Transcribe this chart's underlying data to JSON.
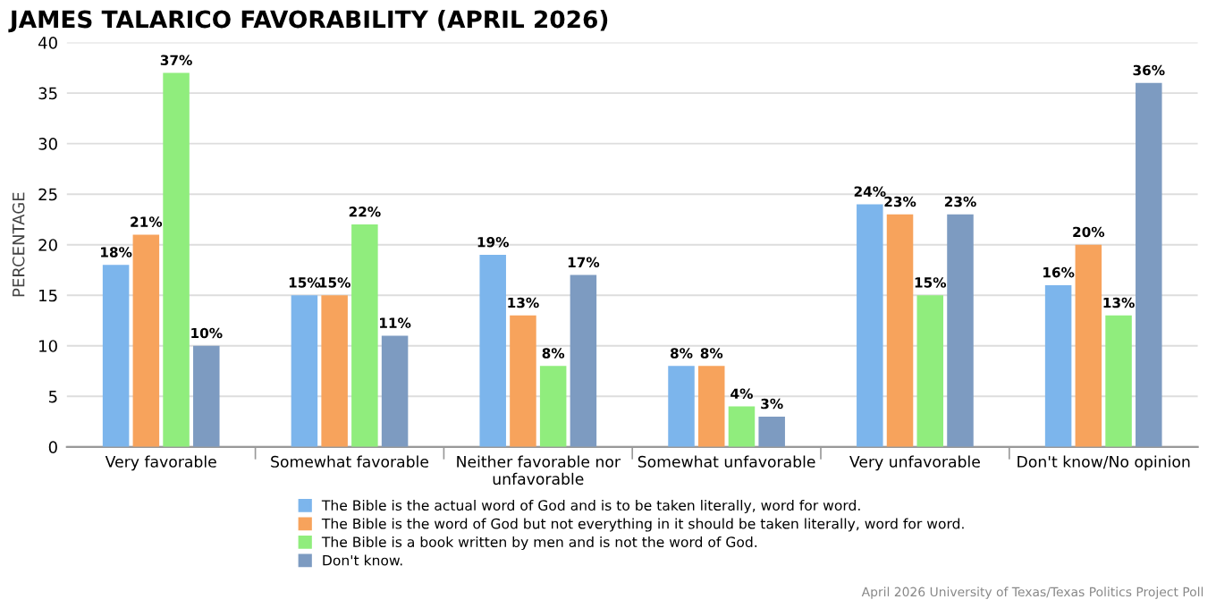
{
  "chart_data": {
    "type": "bar",
    "title": "JAMES TALARICO FAVORABILITY (APRIL 2026)",
    "ylabel": "PERCENTAGE",
    "categories": [
      "Very favorable",
      "Somewhat favorable",
      "Neither favorable nor unfavorable",
      "Somewhat unfavorable",
      "Very unfavorable",
      "Don't know/No opinion"
    ],
    "series": [
      {
        "name": "The Bible is the actual word of God and is to be taken literally, word for word.",
        "color": "#7cb5ec",
        "values": [
          18,
          15,
          19,
          8,
          24,
          16
        ],
        "value_labels": [
          "18%",
          "15%",
          "19%",
          "8%",
          "24%",
          "16%"
        ]
      },
      {
        "name": "The Bible is the word of God but not everything in it should be taken literally, word for word.",
        "color": "#f7a35c",
        "values": [
          21,
          15,
          13,
          8,
          23,
          20
        ],
        "value_labels": [
          "21%",
          "15%",
          "13%",
          "8%",
          "23%",
          "20%"
        ]
      },
      {
        "name": "The Bible is a book written by men and is not the word of God.",
        "color": "#90ed7d",
        "values": [
          37,
          22,
          8,
          4,
          15,
          13
        ],
        "value_labels": [
          "37%",
          "22%",
          "8%",
          "4%",
          "15%",
          "13%"
        ]
      },
      {
        "name": "Don't know.",
        "color": "#7d9bc1",
        "values": [
          10,
          11,
          17,
          3,
          23,
          36
        ],
        "value_labels": [
          "10%",
          "11%",
          "17%",
          "3%",
          "23%",
          "36%"
        ]
      }
    ],
    "ylim": [
      0,
      40
    ],
    "yticks": [
      0,
      5,
      10,
      15,
      20,
      25,
      30,
      35,
      40
    ],
    "grid": "y",
    "legend": "bottom",
    "annotations": [
      "April 2026 University of Texas/Texas Politics Project Poll"
    ]
  }
}
